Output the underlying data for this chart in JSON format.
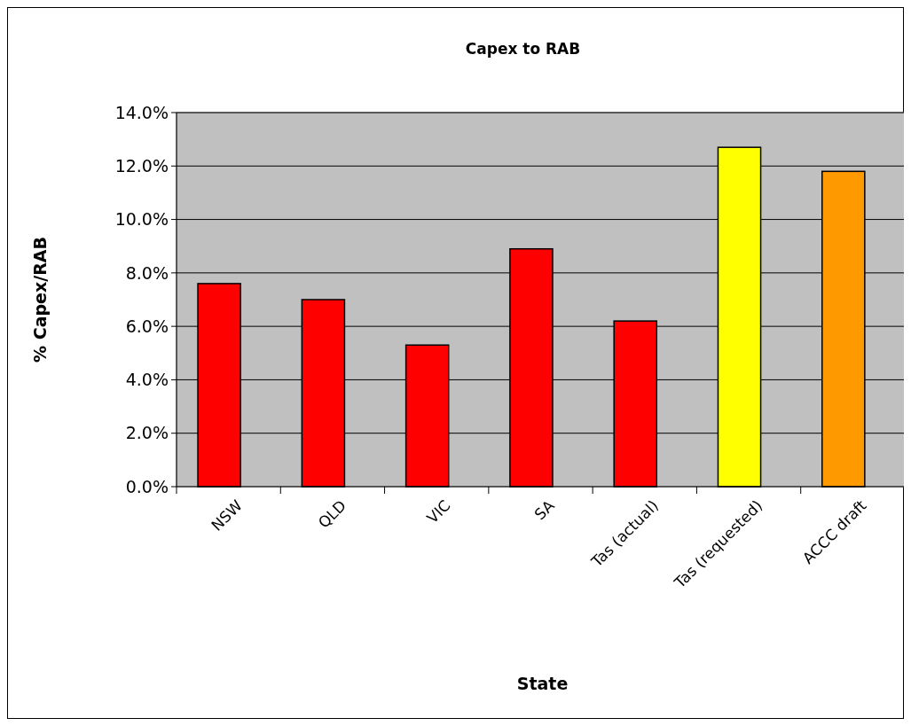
{
  "chart_data": {
    "type": "bar",
    "title": "Capex to RAB",
    "xlabel": "State",
    "ylabel": "% Capex/RAB",
    "categories": [
      "NSW",
      "QLD",
      "VIC",
      "SA",
      "Tas (actual)",
      "Tas (requested)",
      "ACCC draft"
    ],
    "values": [
      7.6,
      7.0,
      5.3,
      8.9,
      6.2,
      12.7,
      11.8
    ],
    "colors": [
      "#ff0000",
      "#ff0000",
      "#ff0000",
      "#ff0000",
      "#ff0000",
      "#ffff00",
      "#ff9900"
    ],
    "ylim": [
      0,
      14
    ],
    "yticks": [
      {
        "value": 0,
        "label": "0.0%"
      },
      {
        "value": 2,
        "label": "2.0%"
      },
      {
        "value": 4,
        "label": "4.0%"
      },
      {
        "value": 6,
        "label": "6.0%"
      },
      {
        "value": 8,
        "label": "8.0%"
      },
      {
        "value": 10,
        "label": "10.0%"
      },
      {
        "value": 12,
        "label": "12.0%"
      },
      {
        "value": 14,
        "label": "14.0%"
      }
    ],
    "grid": "y"
  }
}
